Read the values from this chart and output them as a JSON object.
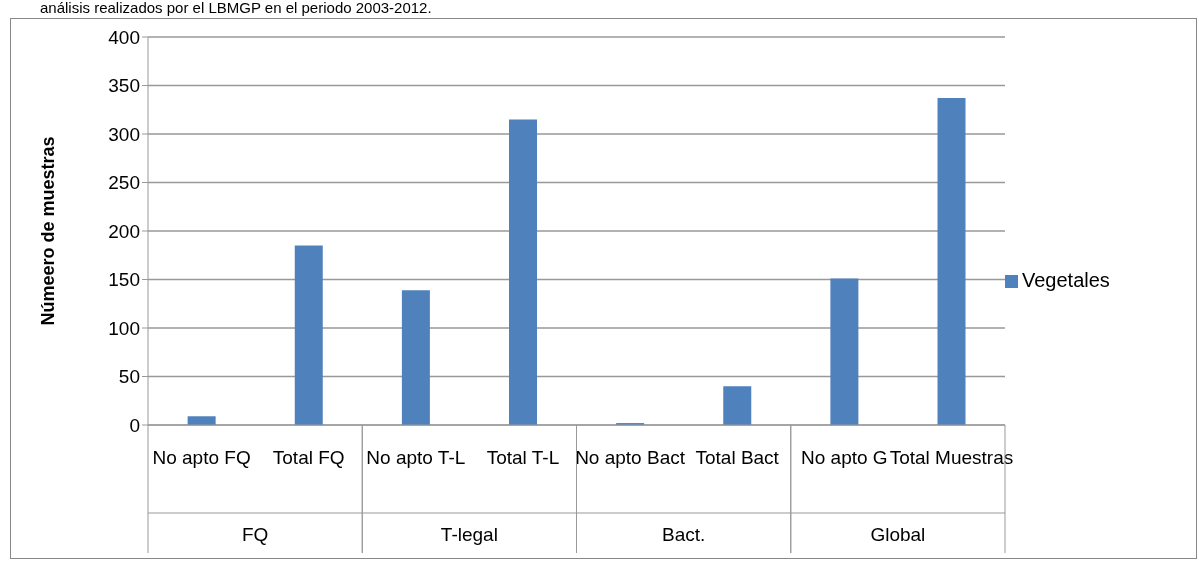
{
  "chart_data": {
    "type": "bar",
    "ylabel": "Númeero de muestras",
    "categories": [
      "No apto FQ",
      "Total FQ",
      "No apto T-L",
      "Total T-L",
      "No apto Bact",
      "Total Bact",
      "No apto G",
      "Total Muestras"
    ],
    "series": [
      {
        "name": "Vegetales",
        "color": "#4f81bd",
        "values": [
          9,
          185,
          139,
          315,
          2,
          40,
          151,
          337
        ]
      }
    ],
    "ylim": [
      0,
      400
    ],
    "yticks": [
      0,
      50,
      100,
      150,
      200,
      250,
      300,
      350,
      400
    ],
    "grid": "y",
    "legend": "right",
    "annotations": [
      "análisis realizados por el LBMGP en el periodo 2003-2012.",
      "FQ",
      "T-legal",
      "Bact.",
      "Global"
    ]
  }
}
